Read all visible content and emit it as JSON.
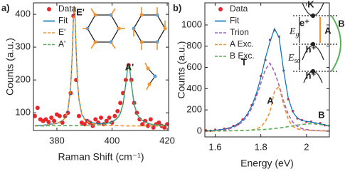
{
  "chart_data": [
    {
      "type": "line",
      "panel_label": "a)",
      "xlabel": "Raman Shift (cm⁻¹)",
      "ylabel": "Counts (a.u.)",
      "xlim": [
        371.5,
        420.5
      ],
      "ylim": [
        46,
        435
      ],
      "xticks": [
        380,
        400,
        420
      ],
      "yticks": [
        100,
        200,
        300,
        400
      ],
      "annotations": [
        "E'",
        "A'"
      ],
      "series": [
        {
          "name": "Data",
          "color": "#e8262a",
          "style": "dot",
          "x": [
            372,
            373,
            374,
            375,
            376,
            377,
            378,
            379,
            380,
            381,
            382,
            383,
            384,
            385,
            386,
            387,
            388,
            389,
            390,
            391,
            392,
            393,
            394,
            395,
            396,
            397,
            398,
            399,
            400,
            401,
            402,
            403,
            404,
            405,
            406,
            407,
            408,
            409,
            410,
            411,
            412,
            413,
            414,
            415,
            416,
            417,
            418,
            419,
            420
          ],
          "values": [
            90,
            115,
            80,
            75,
            80,
            72,
            85,
            75,
            95,
            90,
            70,
            90,
            100,
            160,
            395,
            200,
            90,
            70,
            65,
            75,
            70,
            60,
            80,
            70,
            85,
            65,
            75,
            85,
            70,
            90,
            105,
            130,
            160,
            200,
            245,
            200,
            130,
            100,
            80,
            65,
            75,
            60,
            80,
            55,
            65,
            70,
            60,
            55,
            65
          ]
        },
        {
          "name": "Fit",
          "color": "#0072bd",
          "style": "solid",
          "x": [
            372,
            375,
            380,
            382,
            383,
            384,
            385,
            385.5,
            386,
            386.3,
            386.5,
            387,
            387.5,
            388,
            389,
            390,
            392,
            395,
            398,
            400,
            402,
            403,
            404,
            405,
            405.5,
            406,
            406.5,
            407,
            408,
            409,
            410,
            412,
            415,
            420
          ],
          "values": [
            61,
            62,
            68,
            76,
            86,
            109,
            179,
            265,
            390,
            426,
            409,
            289,
            192,
            141,
            97,
            82,
            71,
            67,
            68,
            72,
            84,
            98,
            127,
            188,
            227,
            245,
            227,
            188,
            127,
            97,
            83,
            71,
            63,
            62
          ]
        },
        {
          "name": "E'",
          "color": "#f0922e",
          "style": "dashed",
          "x": [
            372,
            375,
            380,
            382,
            383,
            384,
            385,
            385.5,
            386,
            386.3,
            386.5,
            387,
            387.5,
            388,
            389,
            390,
            392,
            395,
            398,
            400,
            402,
            403,
            404,
            405,
            405.5,
            406,
            406.5,
            407,
            408,
            409,
            410,
            412,
            415,
            420
          ],
          "values": [
            61,
            62,
            67,
            75,
            85,
            108,
            178,
            264,
            389,
            425,
            408,
            288,
            191,
            140,
            96,
            80,
            69,
            64,
            62,
            61,
            61,
            61,
            60,
            60,
            60,
            60,
            60,
            60,
            60,
            60,
            60,
            60,
            60,
            60
          ]
        },
        {
          "name": "A'",
          "color": "#5aae5a",
          "style": "dashed",
          "x": [
            372,
            375,
            380,
            382,
            383,
            384,
            385,
            385.5,
            386,
            386.3,
            386.5,
            387,
            387.5,
            388,
            389,
            390,
            392,
            395,
            398,
            400,
            402,
            403,
            404,
            405,
            405.5,
            406,
            406.5,
            407,
            408,
            409,
            410,
            412,
            415,
            420
          ],
          "values": [
            60,
            60,
            61,
            61,
            61,
            61,
            61,
            61,
            61,
            61,
            61,
            61,
            61,
            61,
            61,
            62,
            62,
            63,
            66,
            71,
            83,
            97,
            127,
            188,
            227,
            245,
            227,
            188,
            127,
            97,
            83,
            71,
            63,
            62
          ]
        }
      ]
    },
    {
      "type": "line",
      "panel_label": "b)",
      "xlabel": "Energy (eV)",
      "ylabel": "Counts (a.u.)",
      "xlim": [
        1.555,
        2.1
      ],
      "ylim": [
        -54,
        1208
      ],
      "xticks": [
        1.6,
        1.8,
        2
      ],
      "yticks": [
        0,
        200,
        400,
        600,
        800,
        1000
      ],
      "annotations": [
        "T",
        "A",
        "B",
        "K",
        "e⁺",
        "h⁺",
        "h⁺",
        "A",
        "B"
      ],
      "energy_labels": [
        {
          "text": "E",
          "sub": "g"
        },
        {
          "text": "E",
          "sub": "so"
        }
      ],
      "series": [
        {
          "name": "Data",
          "color": "#e8262a",
          "style": "dot",
          "x": [
            1.56,
            1.58,
            1.6,
            1.62,
            1.64,
            1.66,
            1.68,
            1.7,
            1.72,
            1.74,
            1.76,
            1.78,
            1.8,
            1.82,
            1.84,
            1.86,
            1.88,
            1.9,
            1.92,
            1.94,
            1.96,
            1.98,
            2,
            2.02,
            2.04,
            2.06,
            2.08,
            2.1
          ],
          "values": [
            8,
            4,
            14,
            10,
            24,
            26,
            50,
            65,
            110,
            150,
            245,
            340,
            520,
            670,
            860,
            950,
            890,
            570,
            300,
            190,
            120,
            105,
            88,
            90,
            72,
            75,
            55,
            52
          ]
        },
        {
          "name": "Fit",
          "color": "#0072bd",
          "style": "solid",
          "x": [
            1.56,
            1.58,
            1.6,
            1.62,
            1.64,
            1.66,
            1.68,
            1.7,
            1.72,
            1.74,
            1.76,
            1.78,
            1.8,
            1.82,
            1.84,
            1.86,
            1.88,
            1.9,
            1.92,
            1.94,
            1.96,
            1.98,
            2,
            2.02,
            2.04,
            2.06,
            2.08,
            2.1
          ],
          "values": [
            5,
            6,
            9,
            13,
            19,
            29,
            45,
            69,
            103,
            156,
            237,
            352,
            504,
            687,
            840,
            965,
            880,
            566,
            313,
            180,
            124,
            101,
            91,
            86,
            78,
            69,
            60,
            51
          ]
        },
        {
          "name": "Trion",
          "color": "#9a62c0",
          "style": "dashed",
          "x": [
            1.56,
            1.58,
            1.6,
            1.62,
            1.64,
            1.66,
            1.68,
            1.7,
            1.72,
            1.74,
            1.76,
            1.78,
            1.8,
            1.82,
            1.84,
            1.86,
            1.88,
            1.9,
            1.92,
            1.94,
            1.96,
            1.98,
            2,
            2.02,
            2.04,
            2.06,
            2.08,
            2.1
          ],
          "values": [
            2,
            3,
            5,
            8,
            13,
            22,
            36,
            58,
            90,
            140,
            215,
            320,
            450,
            580,
            640,
            560,
            430,
            280,
            160,
            85,
            45,
            25,
            15,
            10,
            6,
            4,
            3,
            2
          ]
        },
        {
          "name": "A Exc.",
          "color": "#f0922e",
          "style": "dashed",
          "x": [
            1.56,
            1.58,
            1.6,
            1.62,
            1.64,
            1.66,
            1.68,
            1.7,
            1.72,
            1.74,
            1.76,
            1.78,
            1.8,
            1.82,
            1.84,
            1.86,
            1.88,
            1.9,
            1.92,
            1.94,
            1.96,
            1.98,
            2,
            2.02,
            2.04,
            2.06,
            2.08,
            2.1
          ],
          "values": [
            1,
            1,
            1,
            2,
            2,
            3,
            4,
            5,
            6,
            8,
            12,
            20,
            40,
            90,
            180,
            380,
            420,
            250,
            110,
            45,
            22,
            13,
            8,
            6,
            4,
            3,
            2,
            2
          ]
        },
        {
          "name": "B Exc.",
          "color": "#5aae5a",
          "style": "dashed",
          "x": [
            1.56,
            1.58,
            1.6,
            1.62,
            1.64,
            1.66,
            1.68,
            1.7,
            1.72,
            1.74,
            1.76,
            1.78,
            1.8,
            1.82,
            1.84,
            1.86,
            1.88,
            1.9,
            1.92,
            1.94,
            1.96,
            1.98,
            2,
            2.02,
            2.04,
            2.06,
            2.08,
            2.1
          ],
          "values": [
            2,
            2,
            3,
            3,
            4,
            4,
            5,
            6,
            7,
            8,
            10,
            12,
            14,
            17,
            20,
            25,
            30,
            36,
            43,
            50,
            57,
            63,
            68,
            70,
            68,
            62,
            55,
            47
          ]
        }
      ]
    }
  ]
}
